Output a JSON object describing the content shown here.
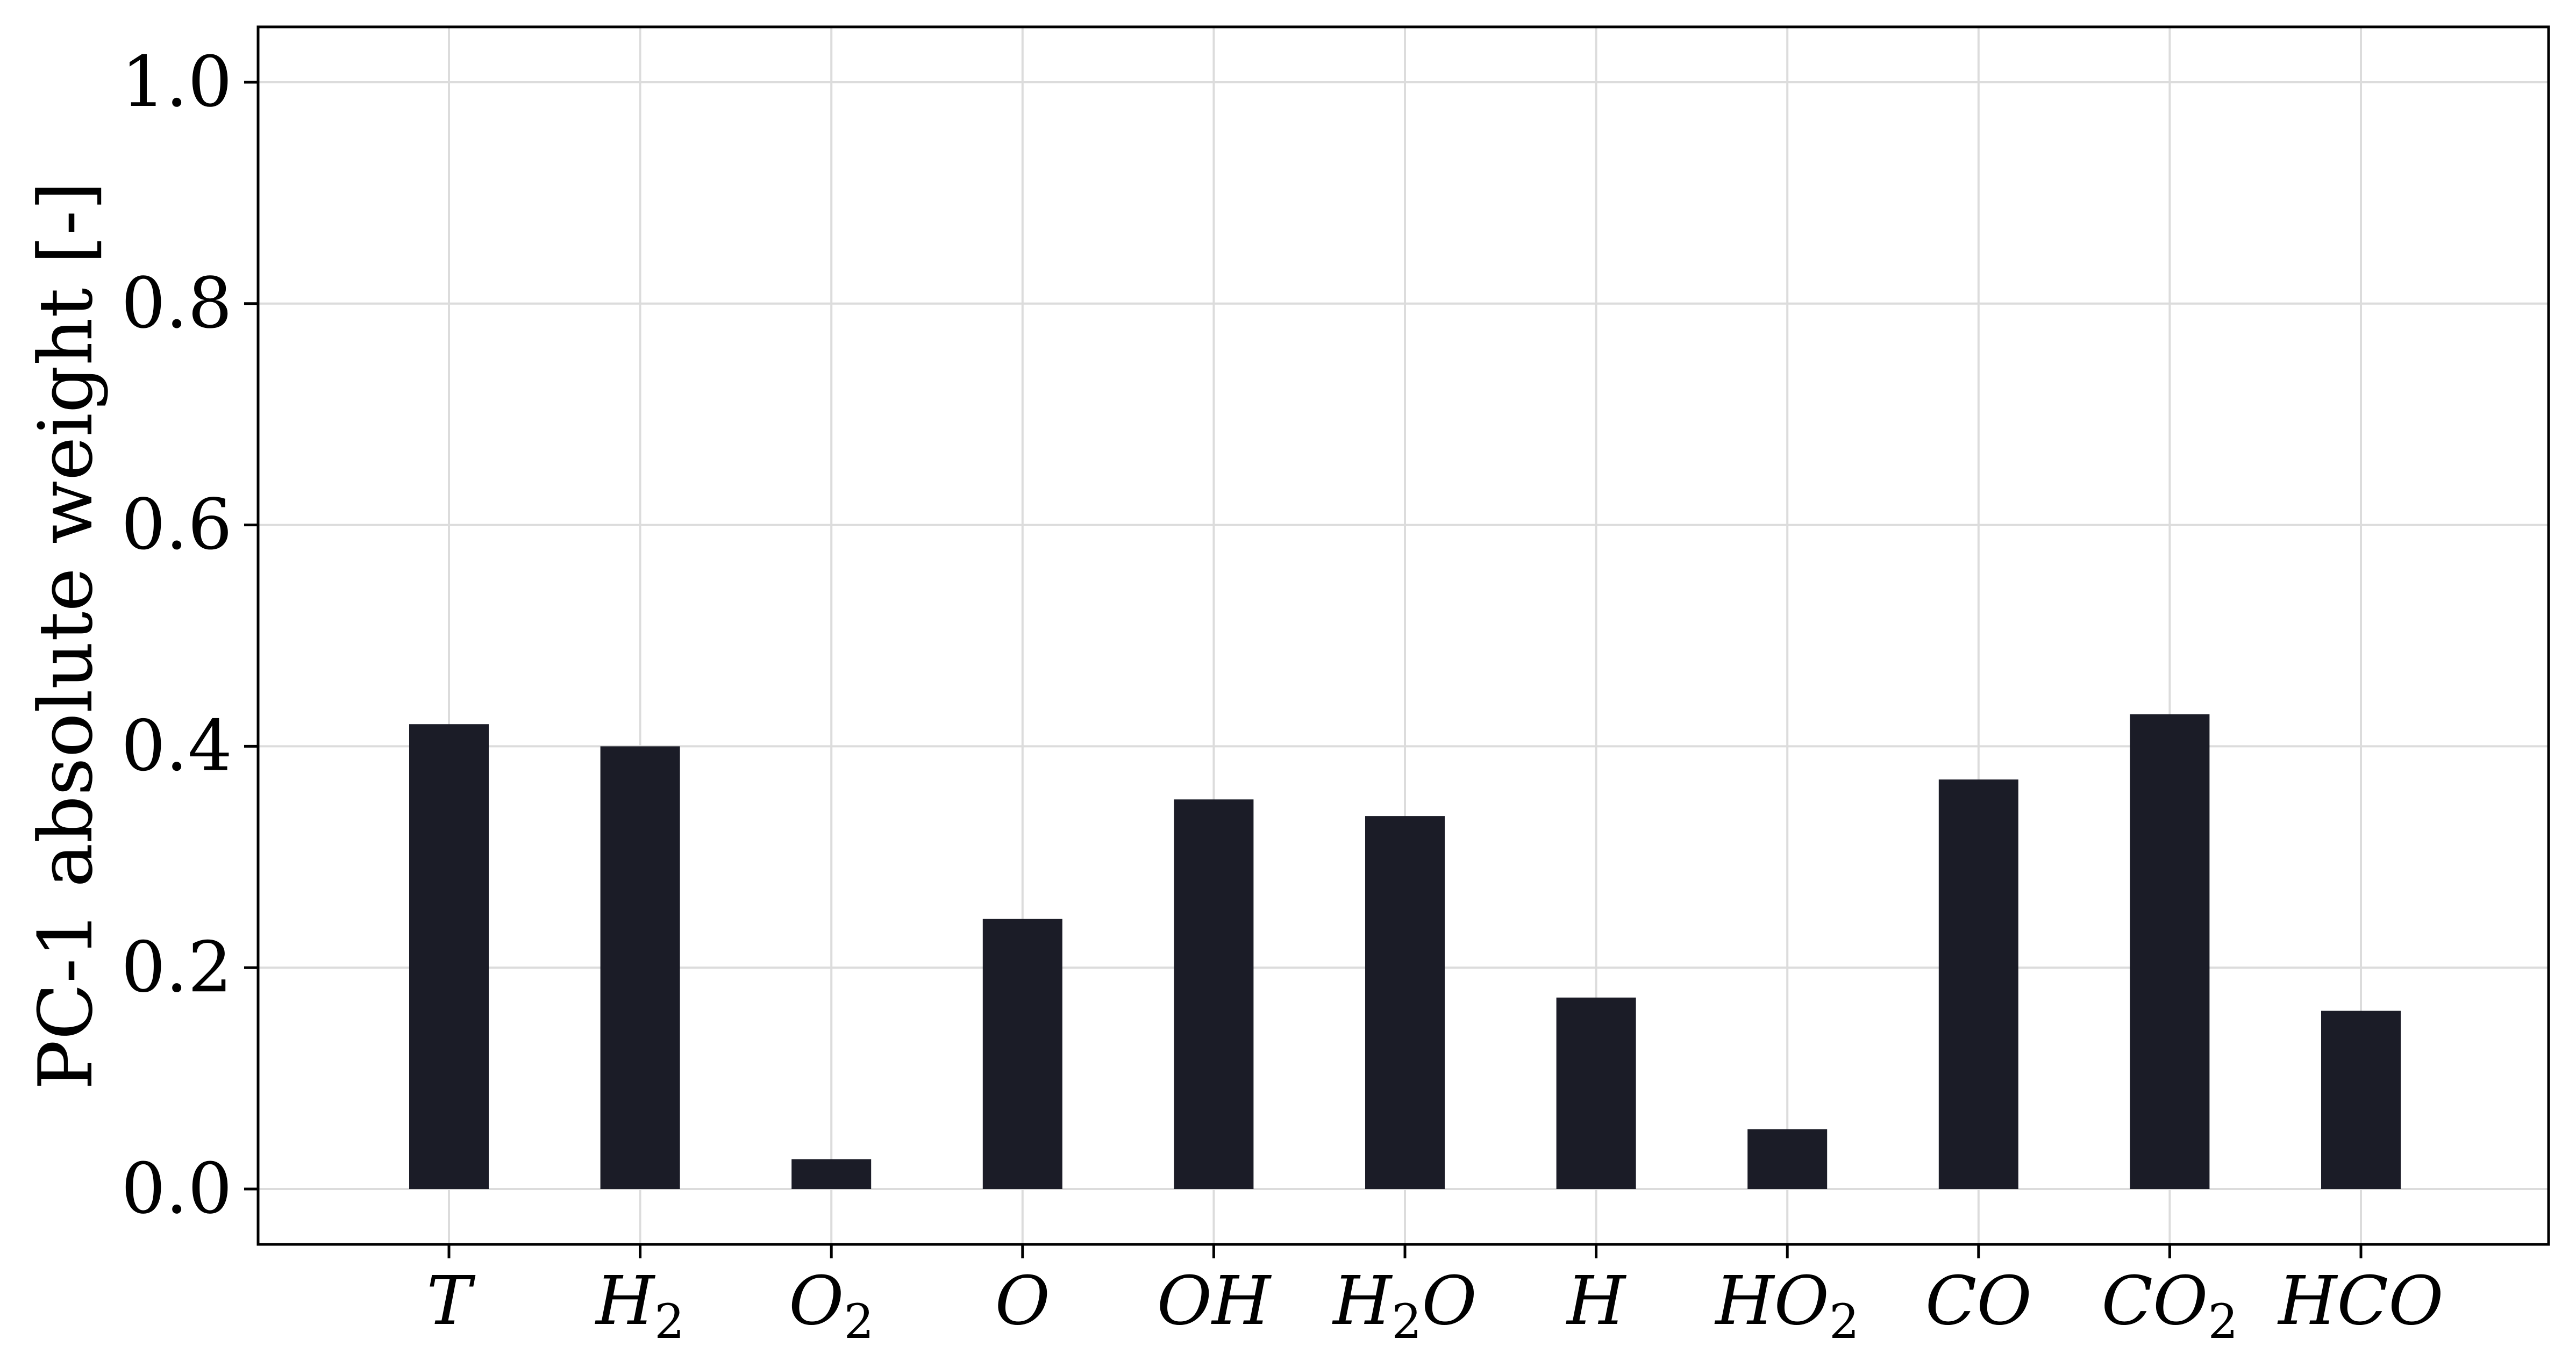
{
  "chart_data": {
    "type": "bar",
    "categories": [
      {
        "base": "T",
        "sub": ""
      },
      {
        "base": "H",
        "sub": "2"
      },
      {
        "base": "O",
        "sub": "2"
      },
      {
        "base": "O",
        "sub": ""
      },
      {
        "base": "OH",
        "sub": ""
      },
      {
        "base": "H",
        "sub": "2",
        "suffix": "O"
      },
      {
        "base": "H",
        "sub": ""
      },
      {
        "base": "HO",
        "sub": "2"
      },
      {
        "base": "CO",
        "sub": ""
      },
      {
        "base": "CO",
        "sub": "2"
      },
      {
        "base": "HCO",
        "sub": ""
      }
    ],
    "values": [
      0.42,
      0.4,
      0.027,
      0.244,
      0.352,
      0.337,
      0.173,
      0.054,
      0.37,
      0.429,
      0.161
    ],
    "title": "",
    "xlabel": "",
    "ylabel": "PC-1 absolute weight [-]",
    "ylim": [
      -0.05,
      1.05
    ],
    "yticks": [
      0.0,
      0.2,
      0.4,
      0.6,
      0.8,
      1.0
    ],
    "ytick_labels": [
      "0.0",
      "0.2",
      "0.4",
      "0.6",
      "0.8",
      "1.0"
    ],
    "grid": true,
    "bar_color": "#1b1c27"
  }
}
